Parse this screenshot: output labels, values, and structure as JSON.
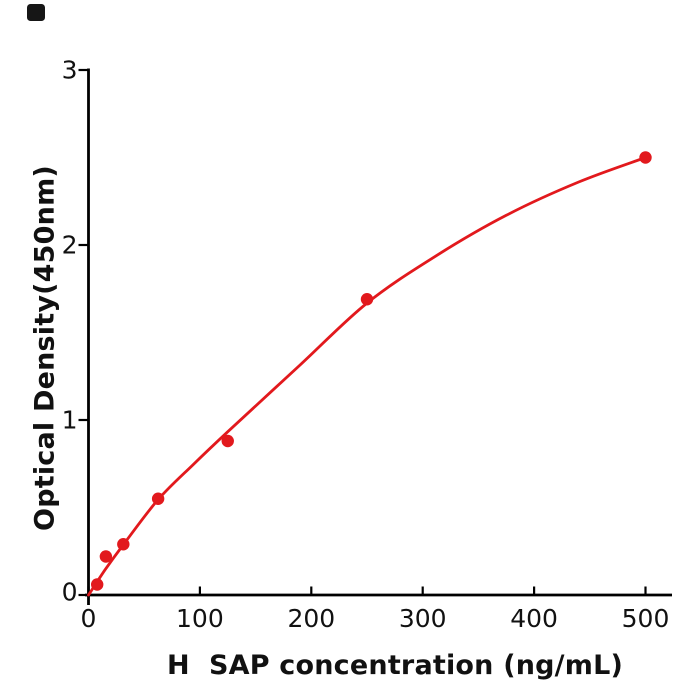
{
  "figure": {
    "background": "#ffffff",
    "corner_marker_color": "#161616"
  },
  "chart_data": {
    "type": "scatter",
    "title": "",
    "xlabel": "H  SAP concentration (ng/mL)",
    "ylabel": "Optical Density(450nm)",
    "xticks": [
      0,
      100,
      200,
      300,
      400,
      500
    ],
    "yticks": [
      0,
      1,
      2,
      3
    ],
    "xlim": [
      0,
      524
    ],
    "ylim": [
      0,
      3
    ],
    "grid": false,
    "legend": "none",
    "axis_color": "#000000",
    "tick_label_color": "#111111",
    "series": [
      {
        "marker_color": "#e2191d",
        "line_color": "#e2191d",
        "points": [
          [
            7.8,
            0.06
          ],
          [
            15.6,
            0.22
          ],
          [
            31.25,
            0.29
          ],
          [
            62.5,
            0.55
          ],
          [
            125,
            0.88
          ],
          [
            250,
            1.69
          ],
          [
            500,
            2.5
          ]
        ],
        "fit_curve": [
          [
            0,
            0.0
          ],
          [
            15,
            0.145
          ],
          [
            31,
            0.285
          ],
          [
            62.5,
            0.545
          ],
          [
            94,
            0.745
          ],
          [
            125,
            0.933
          ],
          [
            190,
            1.315
          ],
          [
            250,
            1.668
          ],
          [
            310,
            1.93
          ],
          [
            375,
            2.17
          ],
          [
            440,
            2.36
          ],
          [
            500,
            2.5
          ]
        ]
      }
    ]
  }
}
